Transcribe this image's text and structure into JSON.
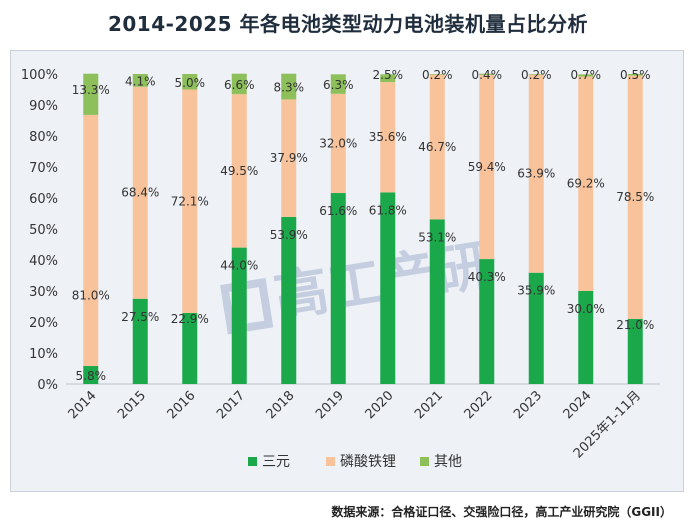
{
  "title": "2014-2025 年各电池类型动力电池装机量占比分析",
  "watermark": "高工产研",
  "source": "数据来源：合格证口径、交强险口径，高工产业研究院（GGII）",
  "chart_data": {
    "type": "bar",
    "stacked": true,
    "categories": [
      "2014",
      "2015",
      "2016",
      "2017",
      "2018",
      "2019",
      "2020",
      "2021",
      "2022",
      "2023",
      "2024",
      "2025年1-11月"
    ],
    "series": [
      {
        "name": "三元",
        "color": "#1aa84a",
        "values": [
          5.8,
          27.5,
          22.9,
          44.0,
          53.9,
          61.6,
          61.8,
          53.1,
          40.3,
          35.9,
          30.0,
          21.0
        ],
        "labels": [
          "5.8%",
          "27.5%",
          "22.9%",
          "44.0%",
          "53.9%",
          "61.6%",
          "61.8%",
          "53.1%",
          "40.3%",
          "35.9%",
          "30.0%",
          "21.0%"
        ]
      },
      {
        "name": "磷酸铁锂",
        "color": "#f8c39b",
        "values": [
          81.0,
          68.4,
          72.1,
          49.5,
          37.9,
          32.0,
          35.6,
          46.7,
          59.4,
          63.9,
          69.2,
          78.5
        ],
        "labels": [
          "81.0%",
          "68.4%",
          "72.1%",
          "49.5%",
          "37.9%",
          "32.0%",
          "35.6%",
          "46.7%",
          "59.4%",
          "63.9%",
          "69.2%",
          "78.5%"
        ]
      },
      {
        "name": "其他",
        "color": "#8dc05a",
        "values": [
          13.3,
          4.1,
          5.0,
          6.6,
          8.3,
          6.3,
          2.5,
          0.2,
          0.4,
          0.2,
          0.7,
          0.5
        ],
        "labels": [
          "13.3%",
          "4.1%",
          "5.0%",
          "6.6%",
          "8.3%",
          "6.3%",
          "2.5%",
          "0.2%",
          "0.4%",
          "0.2%",
          "0.7%",
          "0.5%"
        ]
      }
    ],
    "y_ticks": [
      "0%",
      "10%",
      "20%",
      "30%",
      "40%",
      "50%",
      "60%",
      "70%",
      "80%",
      "90%",
      "100%"
    ],
    "ylim": [
      0,
      100
    ],
    "grid": false,
    "legend_position": "bottom"
  }
}
